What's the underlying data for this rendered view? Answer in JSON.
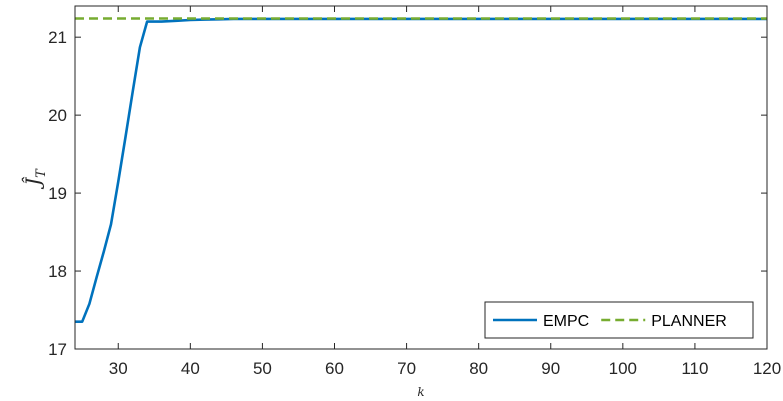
{
  "chart_data": {
    "type": "line",
    "xlabel": "k",
    "ylabel": "Ĵ_T",
    "xlim": [
      24,
      120
    ],
    "ylim": [
      17,
      21.4
    ],
    "x_ticks": [
      "30",
      "40",
      "50",
      "60",
      "70",
      "80",
      "90",
      "100",
      "110",
      "120"
    ],
    "y_ticks": [
      "17",
      "18",
      "19",
      "20",
      "21"
    ],
    "grid": false,
    "legend_position": "bottom-right",
    "series": [
      {
        "name": "EMPC",
        "color": "#0072BD",
        "style": "solid",
        "x": [
          24,
          25,
          26,
          27,
          28,
          29,
          30,
          31,
          32,
          33,
          34,
          35,
          36,
          38,
          40,
          42,
          44,
          46,
          50,
          60,
          70,
          80,
          90,
          100,
          110,
          120
        ],
        "y": [
          17.35,
          17.35,
          17.58,
          17.92,
          18.25,
          18.6,
          19.15,
          19.72,
          20.3,
          20.87,
          21.2,
          21.2,
          21.2,
          21.21,
          21.22,
          21.225,
          21.23,
          21.235,
          21.235,
          21.235,
          21.235,
          21.235,
          21.235,
          21.235,
          21.235,
          21.235
        ]
      },
      {
        "name": "PLANNER",
        "color": "#77AC30",
        "style": "dashed",
        "x": [
          24,
          120
        ],
        "y": [
          21.24,
          21.24
        ]
      }
    ]
  }
}
